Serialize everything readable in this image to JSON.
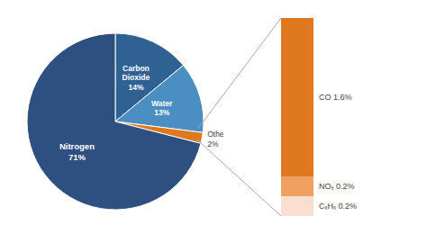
{
  "chart_data": [
    {
      "type": "pie",
      "categories": [
        "Carbon\nDioxide",
        "Water",
        "Other",
        "Nitrogen"
      ],
      "values": [
        14,
        13,
        2,
        71
      ],
      "value_labels": [
        "14%",
        "13%",
        "2%",
        "71%"
      ],
      "colors": [
        "#2f6193",
        "#4a8ec2",
        "#e07820",
        "#2d5080"
      ],
      "data_labels": true
    },
    {
      "type": "bar",
      "stacked": true,
      "categories": [
        null
      ],
      "series": [
        {
          "name": "CₓHₓ",
          "color": "#faded0",
          "values": [
            0.2
          ],
          "value_labels": [
            "0.2%"
          ]
        },
        {
          "name": "NOₓ",
          "color": "#f0a060",
          "values": [
            0.2
          ],
          "value_labels": [
            "0.2%"
          ]
        },
        {
          "name": "CO",
          "color": "#e07820",
          "values": [
            1.6
          ],
          "value_labels": [
            "1.6%"
          ]
        }
      ],
      "ylim": [
        0,
        2
      ],
      "tick_labels": false,
      "data_labels": true
    }
  ]
}
